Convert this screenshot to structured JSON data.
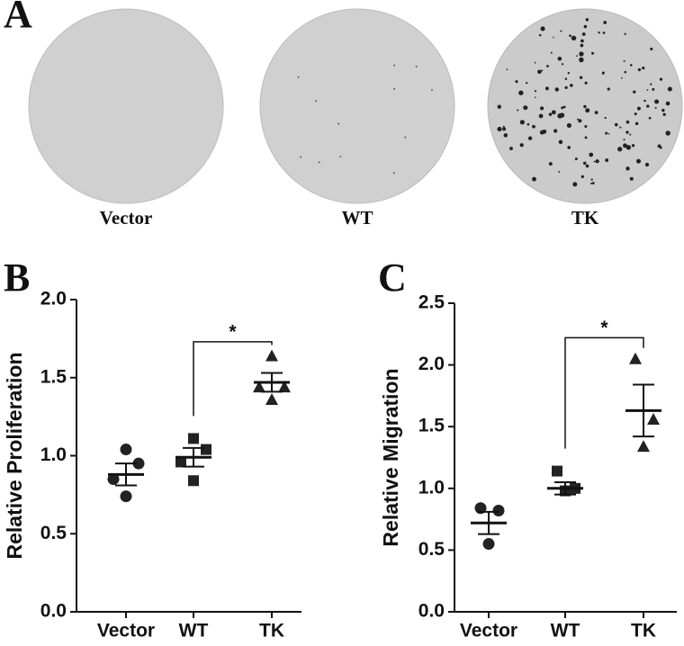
{
  "panel_a": {
    "label": "A",
    "wells": [
      "Vector",
      "WT",
      "TK"
    ]
  },
  "chart_data": [
    {
      "type": "dotplot",
      "panel": "B",
      "ylabel": "Relative Proliferation",
      "categories": [
        "Vector",
        "WT",
        "TK"
      ],
      "markers": [
        "circle",
        "square",
        "triangle"
      ],
      "points": [
        [
          1.04,
          0.95,
          0.85,
          0.74
        ],
        [
          1.11,
          1.04,
          0.96,
          0.84
        ],
        [
          1.64,
          1.44,
          1.44,
          1.36
        ]
      ],
      "means": [
        0.88,
        0.99,
        1.47
      ],
      "sem": [
        0.07,
        0.06,
        0.06
      ],
      "significance": {
        "label": "*",
        "from": 1,
        "to": 2,
        "y": 1.73
      },
      "ylim": [
        0,
        2.0
      ],
      "yticks": [
        {
          "value": 0,
          "label": "0.0"
        },
        0.5,
        {
          "value": 1,
          "label": "1.0"
        },
        1.5,
        {
          "value": 2,
          "label": "2.0"
        }
      ]
    },
    {
      "type": "dotplot",
      "panel": "C",
      "ylabel": "Relative Migration",
      "categories": [
        "Vector",
        "WT",
        "TK"
      ],
      "markers": [
        "circle",
        "square",
        "triangle"
      ],
      "points": [
        [
          0.84,
          0.82,
          0.55
        ],
        [
          1.14,
          1.0,
          0.98
        ],
        [
          2.05,
          1.56,
          1.34
        ]
      ],
      "means": [
        0.72,
        1.0,
        1.63
      ],
      "sem": [
        0.09,
        0.05,
        0.21
      ],
      "significance": {
        "label": "*",
        "from": 1,
        "to": 2,
        "y": 2.22
      },
      "ylim": [
        0,
        2.5
      ],
      "yticks": [
        {
          "value": 0,
          "label": "0.0"
        },
        0.5,
        {
          "value": 1,
          "label": "1.0"
        },
        1.5,
        {
          "value": 2,
          "label": "2.0"
        },
        2.5
      ]
    }
  ]
}
